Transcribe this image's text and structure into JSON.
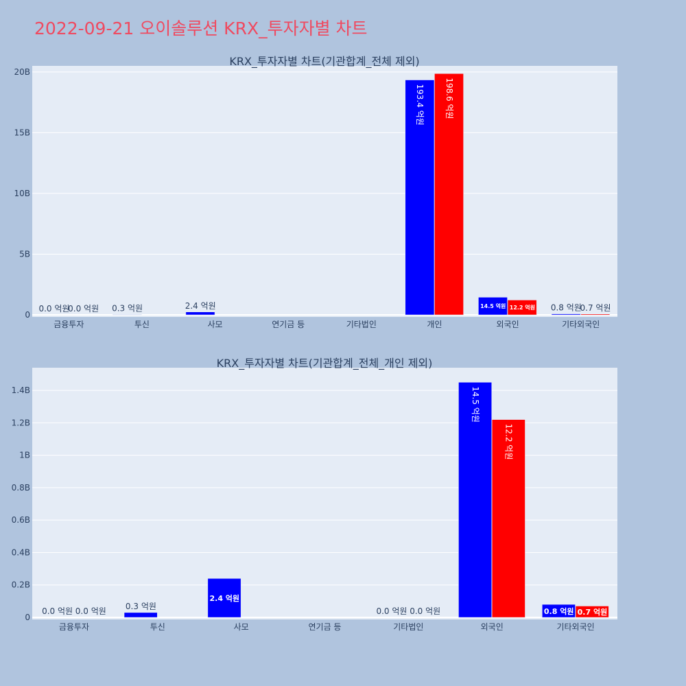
{
  "page_title": "2022-09-21 오이솔루션 KRX_투자자별 차트",
  "colors": {
    "background": "#b0c4de",
    "plot_background": "#e5ecf6",
    "buy": "#0000ff",
    "sell": "#ff0000",
    "title": "#ef4a60",
    "text": "#2a3f5f"
  },
  "chart_data": [
    {
      "type": "bar",
      "title": "KRX_투자자별 차트(기관합계_전체 제외)",
      "categories": [
        "금융투자",
        "투신",
        "사모",
        "연기금 등",
        "기타법인",
        "개인",
        "외국인",
        "기타외국인"
      ],
      "series": [
        {
          "values": [
            0,
            30000000,
            240000000,
            null,
            null,
            19340000000,
            1450000000,
            80000000
          ],
          "labels": [
            "0.0 억원",
            "0.3 억원",
            "2.4 억원",
            "",
            "",
            "193.4 억원",
            "14.5 억원",
            "0.8 억원"
          ]
        },
        {
          "values": [
            0,
            null,
            null,
            null,
            null,
            19860000000,
            1220000000,
            70000000
          ],
          "labels": [
            "0.0 억원",
            "",
            "",
            "",
            "",
            "198.6 억원",
            "12.2 억원",
            "0.7 억원"
          ]
        }
      ],
      "yticks": [
        0,
        5000000000,
        10000000000,
        15000000000,
        20000000000
      ],
      "yticklabels": [
        "0",
        "5B",
        "10B",
        "15B",
        "20B"
      ],
      "ylim": [
        0,
        20500000000
      ],
      "grid": true
    },
    {
      "type": "bar",
      "title": "KRX_투자자별 차트(기관합계_전체_개인 제외)",
      "categories": [
        "금융투자",
        "투신",
        "사모",
        "연기금 등",
        "기타법인",
        "외국인",
        "기타외국인"
      ],
      "series": [
        {
          "values": [
            0,
            30000000,
            240000000,
            null,
            0,
            1450000000,
            80000000
          ],
          "labels": [
            "0.0 억원",
            "0.3 억원",
            "2.4 억원",
            "",
            "0.0 억원",
            "14.5 억원",
            "0.8 억원"
          ]
        },
        {
          "values": [
            0,
            null,
            null,
            null,
            0,
            1220000000,
            70000000
          ],
          "labels": [
            "0.0 억원",
            "",
            "",
            "",
            "0.0 억원",
            "12.2 억원",
            "0.7 억원"
          ]
        }
      ],
      "yticks": [
        0,
        200000000,
        400000000,
        600000000,
        800000000,
        1000000000,
        1200000000,
        1400000000
      ],
      "yticklabels": [
        "0",
        "0.2B",
        "0.4B",
        "0.6B",
        "0.8B",
        "1B",
        "1.2B",
        "1.4B"
      ],
      "ylim": [
        0,
        1540000000
      ],
      "grid": true
    }
  ]
}
